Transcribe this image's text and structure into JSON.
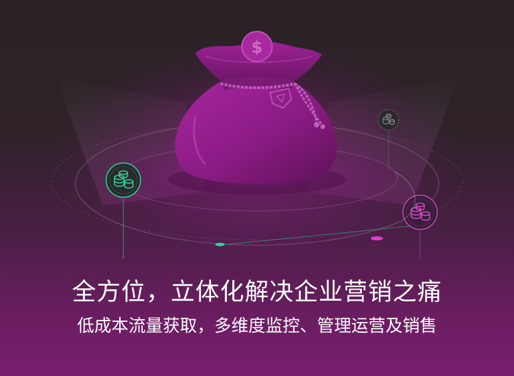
{
  "hero": {
    "headline": "全方位，立体化解决企业营销之痛",
    "subline": "低成本流量获取，多维度监控、管理运营及销售"
  },
  "icons": {
    "main": "money-bag-icon",
    "left_node": "coin-stack-icon",
    "right_node": "coin-stack-icon",
    "top_right_node": "coin-stack-icon"
  },
  "colors": {
    "bag": "#8e1b86",
    "accent_green": "#2fd49a",
    "accent_pink": "#e23bd0",
    "text": "#ffffff"
  }
}
